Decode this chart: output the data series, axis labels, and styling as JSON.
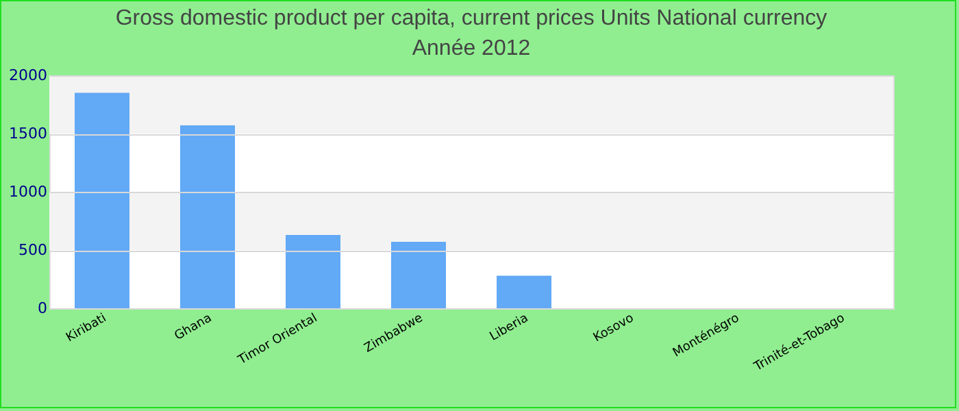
{
  "chart_data": {
    "type": "bar",
    "title": "Gross domestic product per capita, current prices Units National currency",
    "subtitle": "Année 2012",
    "categories": [
      "Kiribati",
      "Ghana",
      "Timor Oriental",
      "Zimbabwe",
      "Liberia",
      "Kosovo",
      "Monténégro",
      "Trinité-et-Tobago"
    ],
    "values": [
      1850,
      1570,
      630,
      570,
      280,
      null,
      null,
      null
    ],
    "color": "#62a9f6",
    "ylim": [
      0,
      2000
    ],
    "yticks": [
      0,
      500,
      1000,
      1500,
      2000
    ],
    "grid": "y"
  }
}
